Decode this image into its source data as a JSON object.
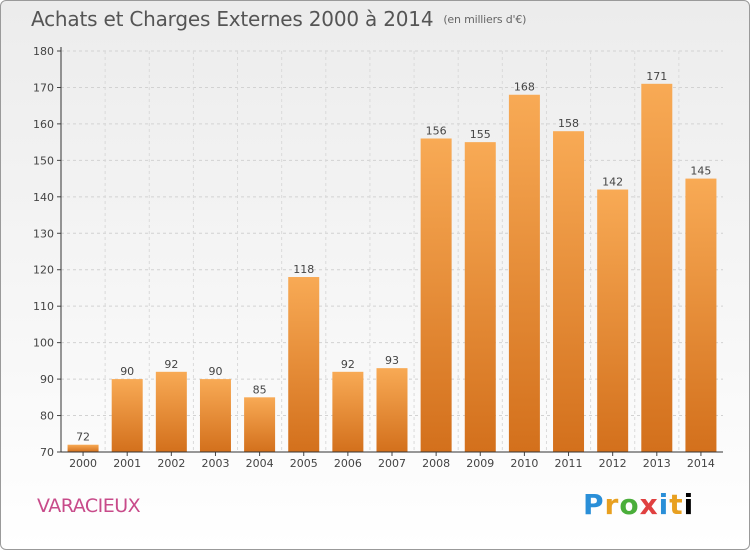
{
  "title": "Achats et Charges Externes 2000 à 2014",
  "subtitle": "(en milliers d'€)",
  "commune": "VARACIEUX",
  "logo": [
    "P",
    "r",
    "o",
    "x",
    "i",
    "t",
    "i"
  ],
  "colors": {
    "bar_light": "#f6a552",
    "bar_dark": "#d46f18",
    "axis": "#333333",
    "grid": "#d0d0d0"
  },
  "chart_data": {
    "type": "bar",
    "categories": [
      "2000",
      "2001",
      "2002",
      "2003",
      "2004",
      "2005",
      "2006",
      "2007",
      "2008",
      "2009",
      "2010",
      "2011",
      "2012",
      "2013",
      "2014"
    ],
    "values": [
      72,
      90,
      92,
      90,
      85,
      118,
      92,
      93,
      156,
      155,
      168,
      158,
      142,
      171,
      145
    ],
    "ylim": [
      70,
      180
    ],
    "yticks": [
      70,
      80,
      90,
      100,
      110,
      120,
      130,
      140,
      150,
      160,
      170,
      180
    ],
    "grid": true
  }
}
